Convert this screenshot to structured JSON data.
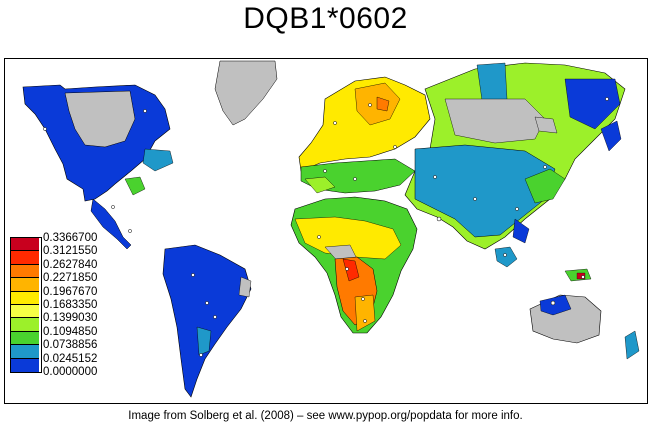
{
  "title": "DQB1*0602",
  "credit": "Image from Solberg et al. (2008) – see www.pypop.org/popdata for more info.",
  "legend": {
    "values": [
      "0.3366700",
      "0.3121550",
      "0.2627840",
      "0.2271850",
      "0.1967670",
      "0.1683350",
      "0.1399030",
      "0.1094850",
      "0.0738856",
      "0.0245152",
      "0.0000000"
    ],
    "colors": [
      "#c8001e",
      "#ff2a00",
      "#ff7a00",
      "#ffb400",
      "#ffea00",
      "#f6ff45",
      "#9cf02a",
      "#4ad22e",
      "#1f98c9",
      "#0a3ad8"
    ]
  },
  "colors": {
    "no_data": "#c0c0c0",
    "sample_point": "#ffffff"
  }
}
